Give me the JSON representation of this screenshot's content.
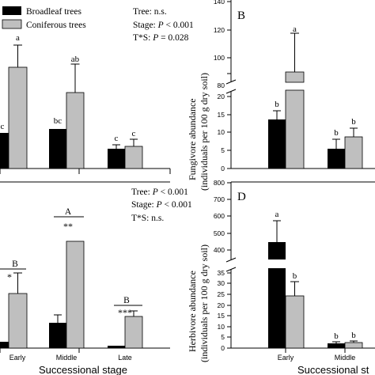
{
  "legend": {
    "broadleaf": "Broadleaf trees",
    "coniferous": "Coniferous trees"
  },
  "colors": {
    "broadleaf": "#000000",
    "coniferous": "#bfbfbf",
    "axis": "#000000"
  },
  "panel_b_ylabel": [
    "Fungivore abundance",
    "(individuals per 100 g dry soil)"
  ],
  "panel_d_ylabel": [
    "Herbivore abundance",
    "(individuals per 100 g dry soil)"
  ],
  "xlabel_left": "Successional stage",
  "xlabel_right": "Successional st",
  "categories": [
    "Early",
    "Middle",
    "Late"
  ],
  "chart_data": [
    {
      "panel": "A",
      "type": "bar",
      "categories": [
        "Early",
        "Middle",
        "Late"
      ],
      "series": [
        {
          "name": "Broadleaf trees",
          "values": [
            9.8,
            11.8,
            5.7
          ],
          "errors": [
            0,
            0,
            1.2
          ]
        },
        {
          "name": "Coniferous trees",
          "values": [
            28.0,
            21.8,
            6.3
          ],
          "errors": [
            9,
            8.4,
            2.2
          ]
        }
      ],
      "letters": [
        [
          "c",
          "a"
        ],
        [
          "bc",
          "ab"
        ],
        [
          "c",
          "c"
        ]
      ],
      "stats": [
        "Tree: n.s.",
        "Stage: P < 0.001",
        "T*S: P = 0.028"
      ]
    },
    {
      "panel": "B",
      "type": "bar",
      "categories": [
        "Early",
        "Middle"
      ],
      "yaxis_break": true,
      "ticks": [
        0,
        5,
        10,
        15,
        20,
        80,
        100,
        120,
        140
      ],
      "series": [
        {
          "name": "Broadleaf trees",
          "values": [
            12.5,
            5.3
          ],
          "errors": [
            2.2,
            1.3
          ]
        },
        {
          "name": "Coniferous trees",
          "values": [
            87,
            8.3
          ],
          "errors": [
            30,
            2.3
          ]
        }
      ],
      "letters": [
        [
          "b",
          "a"
        ],
        [
          "b",
          "b"
        ]
      ]
    },
    {
      "panel": "C",
      "type": "bar",
      "categories": [
        "Early",
        "Middle",
        "Late"
      ],
      "series": [
        {
          "name": "Broadleaf trees",
          "values": [
            1.5,
            6,
            0.7
          ],
          "errors": [
            0,
            2,
            0
          ]
        },
        {
          "name": "Coniferous trees",
          "values": [
            13.5,
            27,
            10.3
          ],
          "errors": [
            0,
            0,
            1.4
          ]
        }
      ],
      "sig": [
        "*",
        "**",
        "***"
      ],
      "group_letters": [
        "B",
        "A",
        "B"
      ],
      "stats": [
        "Tree: P < 0.001",
        "Stage: P < 0.001",
        "T*S: n.s."
      ]
    },
    {
      "panel": "D",
      "type": "bar",
      "categories": [
        "Early",
        "Middle"
      ],
      "yaxis_break": true,
      "ticks": [
        0,
        5,
        10,
        15,
        20,
        25,
        30,
        35,
        400,
        500,
        600,
        700,
        800
      ],
      "series": [
        {
          "name": "Broadleaf trees",
          "values": [
            490,
            1.8
          ],
          "errors": [
            120,
            0.6
          ]
        },
        {
          "name": "Coniferous trees",
          "values": [
            26,
            2.2
          ],
          "errors": [
            7,
            0.6
          ]
        }
      ],
      "letters": [
        [
          "a",
          "b"
        ],
        [
          "b",
          "b"
        ]
      ]
    }
  ]
}
